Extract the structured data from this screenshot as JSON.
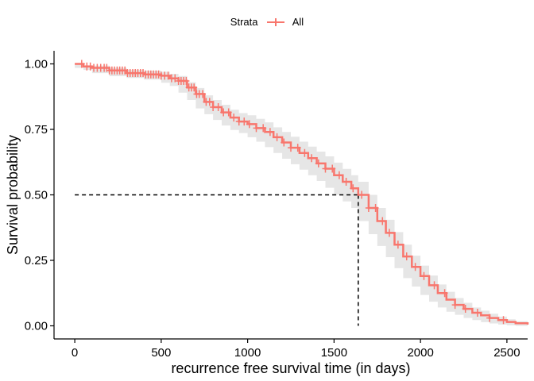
{
  "chart_data": {
    "type": "line",
    "title": "",
    "xlabel": "recurrence free survival time (in days)",
    "ylabel": "Survival probability",
    "xlim": [
      -120,
      2620
    ],
    "ylim": [
      -0.05,
      1.05
    ],
    "x_ticks": [
      0,
      500,
      1000,
      1500,
      2000,
      2500
    ],
    "x_tick_labels": [
      "0",
      "500",
      "1000",
      "1500",
      "2000",
      "2500"
    ],
    "y_ticks": [
      0,
      0.25,
      0.5,
      0.75,
      1
    ],
    "y_tick_labels": [
      "0.00",
      "0.25",
      "0.50",
      "0.75",
      "1.00"
    ],
    "grid": false,
    "legend": {
      "title": "Strata",
      "placement": "top",
      "entries": [
        "All"
      ]
    },
    "colors": {
      "curve": "#F8766D",
      "confidence_band": "#e6e6e6",
      "median_line": "#000000"
    },
    "median": {
      "x": 1640,
      "y": 0.5
    },
    "series": [
      {
        "name": "All",
        "x": [
          0,
          50,
          100,
          200,
          300,
          400,
          500,
          550,
          600,
          650,
          700,
          750,
          800,
          850,
          900,
          950,
          1000,
          1050,
          1100,
          1150,
          1200,
          1250,
          1300,
          1350,
          1400,
          1450,
          1500,
          1550,
          1600,
          1640,
          1700,
          1750,
          1800,
          1850,
          1900,
          1950,
          2000,
          2050,
          2100,
          2150,
          2200,
          2250,
          2300,
          2350,
          2400,
          2450,
          2500,
          2550,
          2620
        ],
        "y": [
          1.0,
          0.99,
          0.985,
          0.975,
          0.965,
          0.96,
          0.955,
          0.945,
          0.935,
          0.91,
          0.885,
          0.855,
          0.835,
          0.815,
          0.795,
          0.78,
          0.77,
          0.755,
          0.74,
          0.72,
          0.7,
          0.68,
          0.66,
          0.64,
          0.62,
          0.6,
          0.575,
          0.55,
          0.525,
          0.5,
          0.45,
          0.4,
          0.355,
          0.31,
          0.265,
          0.225,
          0.19,
          0.155,
          0.125,
          0.1,
          0.08,
          0.065,
          0.05,
          0.04,
          0.03,
          0.022,
          0.015,
          0.01,
          0.005
        ],
        "lower": [
          1.0,
          0.985,
          0.977,
          0.965,
          0.953,
          0.946,
          0.94,
          0.928,
          0.916,
          0.89,
          0.862,
          0.83,
          0.808,
          0.786,
          0.765,
          0.748,
          0.736,
          0.72,
          0.703,
          0.682,
          0.66,
          0.638,
          0.617,
          0.596,
          0.575,
          0.553,
          0.527,
          0.501,
          0.475,
          0.45,
          0.4,
          0.35,
          0.305,
          0.262,
          0.22,
          0.182,
          0.15,
          0.118,
          0.092,
          0.07,
          0.054,
          0.042,
          0.03,
          0.022,
          0.014,
          0.009,
          0.005,
          0.002,
          0.0
        ],
        "upper": [
          1.0,
          0.995,
          0.993,
          0.985,
          0.977,
          0.974,
          0.97,
          0.962,
          0.954,
          0.93,
          0.908,
          0.88,
          0.862,
          0.844,
          0.825,
          0.812,
          0.804,
          0.79,
          0.777,
          0.758,
          0.74,
          0.722,
          0.703,
          0.684,
          0.665,
          0.647,
          0.623,
          0.599,
          0.575,
          0.55,
          0.5,
          0.45,
          0.405,
          0.358,
          0.31,
          0.268,
          0.23,
          0.192,
          0.158,
          0.13,
          0.106,
          0.088,
          0.07,
          0.058,
          0.046,
          0.035,
          0.025,
          0.018,
          0.01
        ],
        "censor_x": [
          40,
          70,
          90,
          110,
          130,
          150,
          170,
          185,
          200,
          215,
          230,
          245,
          260,
          275,
          290,
          305,
          320,
          335,
          350,
          365,
          380,
          395,
          410,
          425,
          440,
          455,
          470,
          485,
          500,
          520,
          540,
          560,
          580,
          600,
          615,
          630,
          645,
          660,
          675,
          690,
          705,
          720,
          740,
          760,
          780,
          800,
          830,
          860,
          890,
          920,
          950,
          980,
          1010,
          1050,
          1090,
          1130,
          1170,
          1210,
          1250,
          1290,
          1330,
          1370,
          1410,
          1450,
          1490,
          1530,
          1570,
          1610,
          1660,
          1700,
          1740,
          1780,
          1820,
          1870,
          1920,
          1970,
          2020,
          2080,
          2140,
          2200,
          2260,
          2330,
          2400,
          2480
        ]
      }
    ]
  }
}
